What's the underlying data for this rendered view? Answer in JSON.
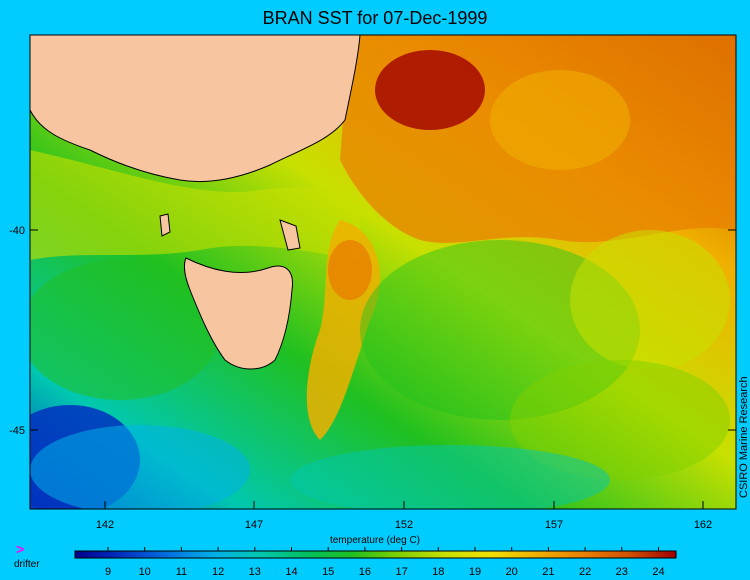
{
  "title": "BRAN SST for 07-Dec-1999",
  "credit": "CSIRO Marine Research",
  "x_axis_label": "temperature (deg C)",
  "legend": {
    "marker_glyph": ">",
    "marker_color": "#ff00ff",
    "label": "drifter"
  },
  "map": {
    "lon_ticks": [
      "142",
      "147",
      "152",
      "157",
      "162"
    ],
    "lat_ticks": [
      "-40",
      "-45"
    ]
  },
  "colorbar": {
    "ticks": [
      "9",
      "10",
      "11",
      "12",
      "13",
      "14",
      "15",
      "16",
      "17",
      "18",
      "19",
      "20",
      "21",
      "22",
      "23",
      "24"
    ],
    "colors": [
      "#00008b",
      "#0030c0",
      "#0070e0",
      "#00b0e8",
      "#00c8b0",
      "#00c060",
      "#20c020",
      "#80d000",
      "#c8e000",
      "#f0e000",
      "#f0b000",
      "#e88000",
      "#d05000",
      "#a00000"
    ]
  },
  "colors": {
    "background": "#00ccff",
    "land": "#f7c59f"
  }
}
